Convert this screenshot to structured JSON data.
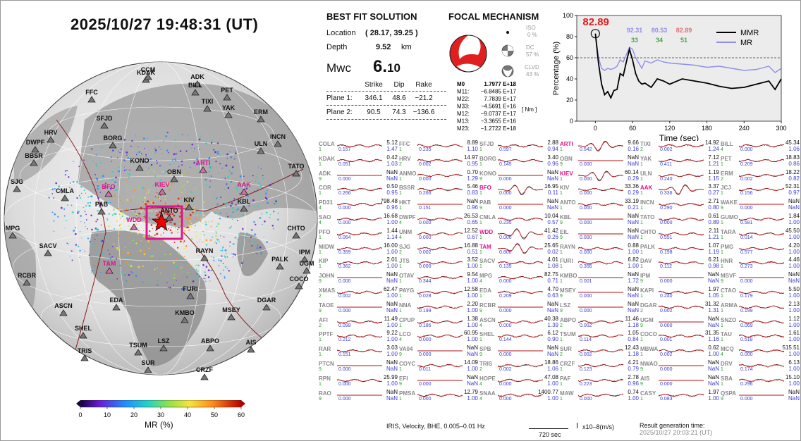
{
  "datetime": "2025/10/27  19:48:31 (UT)",
  "colorbar": {
    "label": "MR (%)",
    "ticks": [
      "0",
      "10",
      "20",
      "30",
      "40",
      "50",
      "60"
    ]
  },
  "best_fit": {
    "title": "BEST FIT SOLUTION",
    "location_label": "Location",
    "location_value": "( 28.17,  39.25 )",
    "depth_label": "Depth",
    "depth_value": "9.52",
    "depth_unit": "km",
    "mw_label": "Mwc",
    "mw_value_big": "6.",
    "mw_value_small": "10",
    "col_strike": "Strike",
    "col_dip": "Dip",
    "col_rake": "Rake",
    "plane1_label": "Plane 1:",
    "plane1": [
      "346.1",
      "48.6",
      "−21.2"
    ],
    "plane2_label": "Plane 2:",
    "plane2": [
      "90.5",
      "74.3",
      "−136.6"
    ]
  },
  "focal": {
    "title": "FOCAL MECHANISM",
    "iso_label": "ISO",
    "iso_value": "0 %",
    "dc_label": "DC",
    "dc_value": "57 %",
    "clvd_label": "CLVD",
    "clvd_value": "43 %",
    "unit": "[ Nm ]",
    "moments": [
      {
        "k": "M0",
        "v": "1.7977 E+18"
      },
      {
        "k": "M11:",
        "v": "−6.8485 E+17"
      },
      {
        "k": "M22:",
        "v": "7.7839 E+17"
      },
      {
        "k": "M33:",
        "v": "−4.5691 E+16"
      },
      {
        "k": "M12:",
        "v": "−9.0737 E+17"
      },
      {
        "k": "M13:",
        "v": "−3.3655 E+16"
      },
      {
        "k": "M23:",
        "v": "−1.2722 E+18"
      }
    ]
  },
  "chart_data": {
    "type": "line",
    "xlabel": "Time (sec)",
    "ylabel": "Percentage (%)",
    "xlim": [
      -30,
      300
    ],
    "ylim": [
      0,
      100
    ],
    "xticks": [
      "0",
      "60",
      "120",
      "180",
      "240",
      "300"
    ],
    "yticks": [
      "0",
      "20",
      "40",
      "60",
      "80",
      "100"
    ],
    "peak_label": "82.89",
    "legend": [
      {
        "name": "MMR",
        "color": "#000000"
      },
      {
        "name": "MR",
        "color": "#8f8fe8"
      }
    ],
    "annot_top": [
      "92.31",
      "80.53",
      "82.89"
    ],
    "annot_bottom": [
      "33",
      "34",
      "51"
    ],
    "series": [
      {
        "name": "MMR",
        "color": "#000000",
        "x": [
          0,
          5,
          10,
          15,
          20,
          25,
          30,
          35,
          40,
          45,
          50,
          55,
          60,
          65,
          70,
          75,
          80,
          90,
          100,
          110,
          120,
          140,
          160,
          180,
          200,
          220,
          240,
          260,
          280,
          290,
          300
        ],
        "y": [
          82.89,
          55,
          35,
          25,
          28,
          22,
          29,
          30,
          45,
          43,
          56,
          68,
          58,
          45,
          38,
          35,
          36,
          32,
          40,
          38,
          35,
          40,
          38,
          36,
          33,
          31,
          32,
          35,
          38,
          30,
          40
        ]
      },
      {
        "name": "MR",
        "color": "#8f8fe8",
        "x": [
          0,
          5,
          10,
          15,
          20,
          25,
          30,
          35,
          40,
          45,
          50,
          55,
          60,
          65,
          70,
          75,
          80,
          90,
          100,
          110,
          120,
          140,
          160,
          180,
          200,
          220,
          240,
          260,
          280,
          290,
          300
        ],
        "y": [
          82.89,
          60,
          50,
          48,
          50,
          49,
          50,
          52,
          58,
          56,
          63,
          70,
          68,
          60,
          55,
          50,
          57,
          55,
          58,
          56,
          55,
          54,
          53,
          51,
          52,
          50,
          48,
          49,
          52,
          46,
          50
        ]
      }
    ],
    "threshold": 60
  },
  "stations_map": [
    {
      "n": "KDAK",
      "pink": false
    },
    {
      "n": "CCM",
      "pink": false
    },
    {
      "n": "ADK",
      "pink": false
    },
    {
      "n": "BILL",
      "pink": false
    },
    {
      "n": "FFC",
      "pink": false
    },
    {
      "n": "PET",
      "pink": false
    },
    {
      "n": "TIXI",
      "pink": false
    },
    {
      "n": "YAK",
      "pink": false
    },
    {
      "n": "SFJD",
      "pink": false
    },
    {
      "n": "ERM",
      "pink": false
    },
    {
      "n": "HRV",
      "pink": false
    },
    {
      "n": "BORG",
      "pink": false
    },
    {
      "n": "DWPF",
      "pink": false
    },
    {
      "n": "INCN",
      "pink": false
    },
    {
      "n": "BBSR",
      "pink": false
    },
    {
      "n": "ULN",
      "pink": false
    },
    {
      "n": "TATO",
      "pink": false
    },
    {
      "n": "KONO",
      "pink": false
    },
    {
      "n": "ARTI",
      "pink": true
    },
    {
      "n": "SJG",
      "pink": false
    },
    {
      "n": "OBN",
      "pink": false
    },
    {
      "n": "KIEV",
      "pink": true
    },
    {
      "n": "AAK",
      "pink": true
    },
    {
      "n": "BFO",
      "pink": true
    },
    {
      "n": "CMLA",
      "pink": false
    },
    {
      "n": "KIV",
      "pink": false
    },
    {
      "n": "KBL",
      "pink": false
    },
    {
      "n": "PAB",
      "pink": false
    },
    {
      "n": "ANTO",
      "pink": false
    },
    {
      "n": "CHTO",
      "pink": false
    },
    {
      "n": "WDD",
      "pink": true
    },
    {
      "n": "MPG",
      "pink": false
    },
    {
      "n": "IPM",
      "pink": false
    },
    {
      "n": "SACV",
      "pink": false
    },
    {
      "n": "UGM",
      "pink": false
    },
    {
      "n": "TAM",
      "pink": true
    },
    {
      "n": "RAYN",
      "pink": false
    },
    {
      "n": "PALK",
      "pink": false
    },
    {
      "n": "RCBR",
      "pink": false
    },
    {
      "n": "COCO",
      "pink": false
    },
    {
      "n": "FURI",
      "pink": false
    },
    {
      "n": "ASCN",
      "pink": false
    },
    {
      "n": "EDA",
      "pink": false
    },
    {
      "n": "DGAR",
      "pink": false
    },
    {
      "n": "MSEY",
      "pink": false
    },
    {
      "n": "KMBO",
      "pink": false
    },
    {
      "n": "SHEL",
      "pink": false
    },
    {
      "n": "AIS",
      "pink": false
    },
    {
      "n": "ABPO",
      "pink": false
    },
    {
      "n": "TSUM",
      "pink": false
    },
    {
      "n": "LSZ",
      "pink": false
    },
    {
      "n": "TRIS",
      "pink": false
    },
    {
      "n": "SUR",
      "pink": false
    },
    {
      "n": "CRZF",
      "pink": false
    }
  ],
  "waveforms": [
    [
      "COLA",
      "5.12",
      "1",
      "0.157",
      "1.47",
      false
    ],
    [
      "FFC",
      "8.89",
      "1",
      "0.235",
      "1.10",
      false
    ],
    [
      "SFJD",
      "2.88",
      "1",
      "0.597",
      "0.94",
      false
    ],
    [
      "ARTI",
      "9.66",
      "1",
      "0.542",
      "0.16",
      true
    ],
    [
      "TIXI",
      "14.92",
      "2",
      "0.002",
      "1.24",
      false
    ],
    [
      "BILL",
      "45.34",
      "4",
      "0.000",
      "1.06",
      false
    ],
    [
      "KDAK",
      "0.42",
      "1",
      "0.051",
      "1.03",
      false
    ],
    [
      "HRV",
      "14.97",
      "2",
      "0.002",
      "0.95",
      false
    ],
    [
      "BORG",
      "3.40",
      "1",
      "0.145",
      "0.96",
      false
    ],
    [
      "OBN",
      "NaN",
      "9",
      "0.000",
      "NaN",
      false
    ],
    [
      "YAK",
      "7.12",
      "1",
      "0.411",
      "1.21",
      false
    ],
    [
      "PET",
      "18.83",
      "1",
      "0.209",
      "0.86",
      false
    ],
    [
      "ADK",
      "NaN",
      "9",
      "0.000",
      "NaN",
      false
    ],
    [
      "ANMO",
      "0.70",
      "1",
      "0.000",
      "1.29",
      false
    ],
    [
      "KONO",
      "NaN",
      "9",
      "0.000",
      "NaN",
      false
    ],
    [
      "KIEV",
      "60.14",
      "1",
      "0.000",
      "0.29",
      true
    ],
    [
      "ULN",
      "1.19",
      "1",
      "0.240",
      "1.15",
      false
    ],
    [
      "ERM",
      "18.22",
      "2",
      "0.002",
      "0.82",
      false
    ],
    [
      "COR",
      "0.50",
      "1",
      "0.266",
      "0.95",
      false
    ],
    [
      "BSSR",
      "5.46",
      "1",
      "0.266",
      "0.83",
      false
    ],
    [
      "BFO",
      "16.95",
      "1",
      "0.000",
      "0.11",
      true
    ],
    [
      "KIV",
      "33.36",
      "1",
      "0.000",
      "0.29",
      false
    ],
    [
      "AAK",
      "3.37",
      "1",
      "0.336",
      "0.27",
      true
    ],
    [
      "JCJ",
      "52.31",
      "1",
      "0.156",
      "0.97",
      false
    ],
    [
      "PD31",
      "798.48",
      "4",
      "0.000",
      "0.96",
      false
    ],
    [
      "HKT",
      "NaN",
      "1",
      "0.151",
      "0.96",
      false
    ],
    [
      "PAB",
      "NaN",
      "9",
      "0.000",
      "NaN",
      false
    ],
    [
      "ANTO",
      "33.19",
      "1",
      "0.000",
      "0.21",
      false
    ],
    [
      "INCN",
      "2.71",
      "1",
      "0.290",
      "0.80",
      false
    ],
    [
      "WAKE",
      "NaN",
      "9",
      "0.000",
      "NaN",
      false
    ],
    [
      "SAO",
      "16.68",
      "4",
      "0.000",
      "1.00",
      false
    ],
    [
      "DWPF",
      "26.53",
      "4",
      "0.000",
      "0.65",
      false
    ],
    [
      "CMLA",
      "10.04",
      "1",
      "0.235",
      "0.57",
      false
    ],
    [
      "KBL",
      "NaN",
      "9",
      "0.000",
      "NaN",
      false
    ],
    [
      "TATO",
      "0.61",
      "1",
      "0.000",
      "0.89",
      false
    ],
    [
      "GUMO",
      "1.84",
      "1",
      "0.581",
      "1.00",
      false
    ],
    [
      "PFO",
      "1.44",
      "1",
      "0.064",
      "1.14",
      false
    ],
    [
      "UNM",
      "12.52",
      "4",
      "0.000",
      "0.67",
      false
    ],
    [
      "WDD",
      "41.42",
      "1",
      "0.000",
      "0.26",
      true
    ],
    [
      "EIL",
      "NaN",
      "9",
      "0.000",
      "NaN",
      false
    ],
    [
      "CHTO",
      "2.11",
      "1",
      "0.551",
      "1.21",
      false
    ],
    [
      "TARA",
      "45.50",
      "1",
      "0.014",
      "1.00",
      false
    ],
    [
      "MIDW",
      "16.00",
      "1",
      "0.359",
      "1.00",
      false
    ],
    [
      "SJG",
      "16.88",
      "2",
      "0.002",
      "0.51",
      false
    ],
    [
      "TAM",
      "25.65",
      "1",
      "0.800",
      "0.02",
      true
    ],
    [
      "RAYN",
      "0.88",
      "1",
      "0.000",
      "1.00",
      false
    ],
    [
      "PALK",
      "1.07",
      "1",
      "0.198",
      "1.19",
      false
    ],
    [
      "PMG",
      "4.20",
      "1",
      "0.577",
      "1.00",
      false
    ],
    [
      "KIP",
      "2.01",
      "1",
      "0.362",
      "1.00",
      false
    ],
    [
      "JTS",
      "3.52",
      "1",
      "0.000",
      "1.00",
      false
    ],
    [
      "SACV",
      "4.01",
      "1",
      "0.135",
      "1.08",
      false
    ],
    [
      "FURI",
      "6.82",
      "1",
      "0.356",
      "1.00",
      false
    ],
    [
      "DAV",
      "6.21",
      "1",
      "0.112",
      "0.98",
      false
    ],
    [
      "HNR",
      "4.46",
      "1",
      "0.273",
      "1.00",
      false
    ],
    [
      "JOHN",
      "NaN",
      "9",
      "0.000",
      "NaN",
      false
    ],
    [
      "OTAV",
      "9.54",
      "1",
      "0.344",
      "1.00",
      false
    ],
    [
      "MPG",
      "82.75",
      "4",
      "0.000",
      "0.71",
      false
    ],
    [
      "KMBO",
      "NaN",
      "1",
      "0.001",
      "1.72",
      false
    ],
    [
      "IPM",
      "NaN",
      "9",
      "0.000",
      "NaN",
      false
    ],
    [
      "MSVF",
      "NaN",
      "9",
      "0.000",
      "NaN",
      false
    ],
    [
      "XMAS",
      "62.47",
      "2",
      "0.002",
      "1.00",
      false
    ],
    [
      "PAYG",
      "12.58",
      "1",
      "0.028",
      "1.00",
      false
    ],
    [
      "EDA",
      "4.70",
      "1",
      "0.209",
      "0.63",
      false
    ],
    [
      "MSEY",
      "NaN",
      "9",
      "0.000",
      "NaN",
      false
    ],
    [
      "KAPI",
      "1.97",
      "1",
      "0.240",
      "1.05",
      false
    ],
    [
      "CTAO",
      "5.50",
      "1",
      "0.179",
      "1.00",
      false
    ],
    [
      "TAOE",
      "NaN",
      "9",
      "0.000",
      "NaN",
      false
    ],
    [
      "NNA",
      "2.20",
      "1",
      "0.199",
      "1.00",
      false
    ],
    [
      "RCBR",
      "NaN",
      "9",
      "0.000",
      "NaN",
      false
    ],
    [
      "LSZ",
      "NaN",
      "9",
      "0.000",
      "NaN",
      false
    ],
    [
      "DGAR",
      "31.32",
      "2",
      "0.002",
      "1.31",
      false
    ],
    [
      "ARMA",
      "2.13",
      "1",
      "0.199",
      "1.00",
      false
    ],
    [
      "AFI",
      "11.49",
      "2",
      "0.099",
      "1.00",
      false
    ],
    [
      "CPUP",
      "1.38",
      "1",
      "0.186",
      "1.00",
      false
    ],
    [
      "ASCN",
      "40.38",
      "4",
      "0.000",
      "1.39",
      false
    ],
    [
      "ABPO",
      "11.46",
      "2",
      "0.002",
      "1.18",
      false
    ],
    [
      "UGM",
      "NaN",
      "9",
      "0.000",
      "NaN",
      false
    ],
    [
      "SNZO",
      "1.12",
      "1",
      "0.069",
      "1.00",
      false
    ],
    [
      "PPTF",
      "9.22",
      "1",
      "0.212",
      "1.00",
      false
    ],
    [
      "LCO",
      "60.95",
      "4",
      "0.000",
      "1.00",
      false
    ],
    [
      "SHEL",
      "6.12",
      "1",
      "0.144",
      "0.90",
      false
    ],
    [
      "TSUM",
      "1.05",
      "1",
      "0.114",
      "0.84",
      false
    ],
    [
      "COCO",
      "31.35",
      "1",
      "0.001",
      "1.16",
      false
    ],
    [
      "TAU",
      "1.61",
      "1",
      "0.518",
      "1.00",
      false
    ],
    [
      "RAR",
      "3.03",
      "1",
      "0.151",
      "1.00",
      false
    ],
    [
      "VA04",
      "NaN",
      "9",
      "0.000",
      "NaN",
      false
    ],
    [
      "SPB",
      "NaN",
      "9",
      "0.000",
      "NaN",
      false
    ],
    [
      "SUR",
      "12.43",
      "2",
      "0.002",
      "1.18",
      false
    ],
    [
      "MBWA",
      "0.62",
      "1",
      "0.002",
      "1.00",
      false
    ],
    [
      "MCQ",
      "515.51",
      "4",
      "0.000",
      "1.00",
      false
    ],
    [
      "PTCN",
      "NaN",
      "9",
      "0.000",
      "NaN",
      false
    ],
    [
      "COYC",
      "14.09",
      "1",
      "0.011",
      "1.00",
      false
    ],
    [
      "TRIS",
      "18.86",
      "2",
      "0.002",
      "1.06",
      false
    ],
    [
      "CRZF",
      "4.21",
      "1",
      "0.123",
      "0.79",
      false
    ],
    [
      "NWAO",
      "NaN",
      "9",
      "0.000",
      "NaN",
      false
    ],
    [
      "DRV",
      "6.13",
      "1",
      "0.174",
      "1.00",
      false
    ],
    [
      "RPN",
      "25.99",
      "1",
      "0.000",
      "1.00",
      false
    ],
    [
      "EFI",
      "NaN",
      "9",
      "0.000",
      "NaN",
      false
    ],
    [
      "HOPE",
      "47.08",
      "4",
      "0.000",
      "1.00",
      false
    ],
    [
      "PAF",
      "2.78",
      "1",
      "0.223",
      "0.96",
      false
    ],
    [
      "AIS",
      "NaN",
      "9",
      "0.000",
      "NaN",
      false
    ],
    [
      "SBA",
      "15.10",
      "1",
      "0.296",
      "1.00",
      false
    ],
    [
      "RAO",
      "NaN",
      "9",
      "0.000",
      "NaN",
      false
    ],
    [
      "PMSA",
      "12.79",
      "1",
      "0.000",
      "1.00",
      false
    ],
    [
      "SNAA",
      "1400.77",
      "4",
      "0.000",
      "1.00",
      false
    ],
    [
      "MAW",
      "0.74",
      "1",
      "0.000",
      "1.00",
      false
    ],
    [
      "CASY",
      "1.97",
      "1",
      "0.083",
      "1.00",
      false
    ],
    [
      "QSPA",
      "NaN",
      "9",
      "0.000",
      "NaN",
      false
    ]
  ],
  "footer": {
    "processing": "IRIS,  Velocity,   BHE,  0.005–0.01 Hz",
    "scale": "720 sec",
    "units": "x10–8(m/s)",
    "gen_label": "Result generation time:",
    "gen_time": "2025/10/27  20:03:21  (UT)"
  }
}
